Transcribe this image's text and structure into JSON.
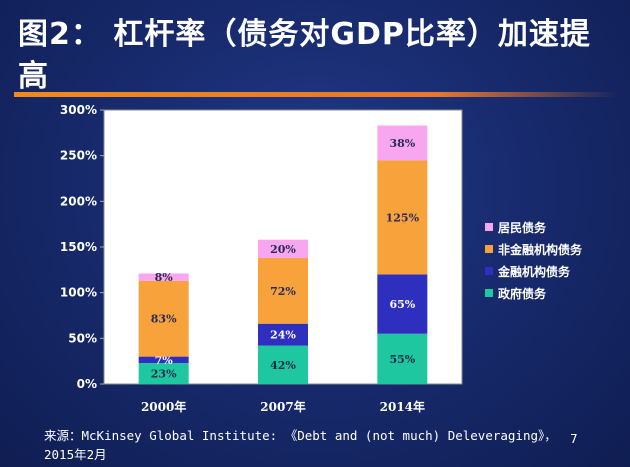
{
  "slide": {
    "title": "图2： 杠杆率（债务对GDP比率）加速提高",
    "source": "来源：McKinsey Global Institute: 《Debt and (not much) Deleveraging》，2015年2月",
    "page_number": "7",
    "accent_color": "#f08a1c"
  },
  "chart_data": {
    "type": "bar",
    "stacked": true,
    "categories": [
      "2000年",
      "2007年",
      "2014年"
    ],
    "series": [
      {
        "name": "政府债务",
        "color": "#1fc7a0",
        "values": [
          23,
          42,
          55
        ],
        "labels": [
          "23%",
          "42%",
          "55%"
        ]
      },
      {
        "name": "金融机构债务",
        "color": "#2f2fbf",
        "values": [
          7,
          24,
          65
        ],
        "labels": [
          "7%",
          "24%",
          "65%"
        ]
      },
      {
        "name": "非金融机构债务",
        "color": "#f7a23a",
        "values": [
          83,
          72,
          125
        ],
        "labels": [
          "83%",
          "72%",
          "125%"
        ]
      },
      {
        "name": "居民债务",
        "color": "#f9a6f0",
        "values": [
          8,
          20,
          38
        ],
        "labels": [
          "8%",
          "20%",
          "38%"
        ]
      }
    ],
    "totals": [
      121,
      158,
      283
    ],
    "total_labels": [
      "121%",
      "158%",
      "283%"
    ],
    "ylim": [
      0,
      300
    ],
    "yticks": [
      0,
      50,
      100,
      150,
      200,
      250,
      300
    ],
    "ytick_labels": [
      "0%",
      "50%",
      "100%",
      "150%",
      "200%",
      "250%",
      "300%"
    ],
    "legend_order": [
      "居民债务",
      "非金融机构债务",
      "金融机构债务",
      "政府债务"
    ],
    "legend_position": "right",
    "plot_background": "#ffffff"
  }
}
